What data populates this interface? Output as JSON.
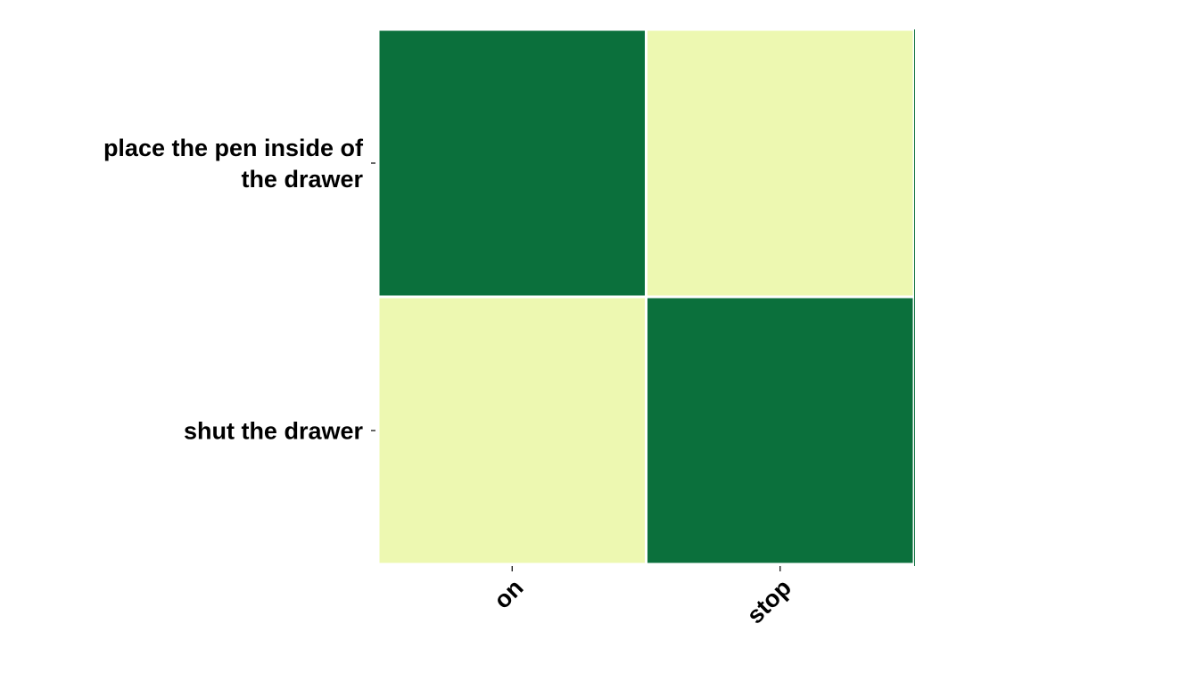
{
  "chart_data": {
    "type": "heatmap",
    "title": "",
    "xlabel": "",
    "ylabel": "",
    "x_categories": [
      "on",
      "stop"
    ],
    "y_categories": [
      [
        "place the pen inside of",
        "the drawer"
      ],
      [
        "shut the drawer"
      ]
    ],
    "values": [
      [
        1,
        0
      ],
      [
        0,
        1
      ]
    ],
    "colorscale": {
      "low": "#edf8b1",
      "high": "#0b703c"
    },
    "colorbar": false,
    "grid": false,
    "legend": "none"
  }
}
